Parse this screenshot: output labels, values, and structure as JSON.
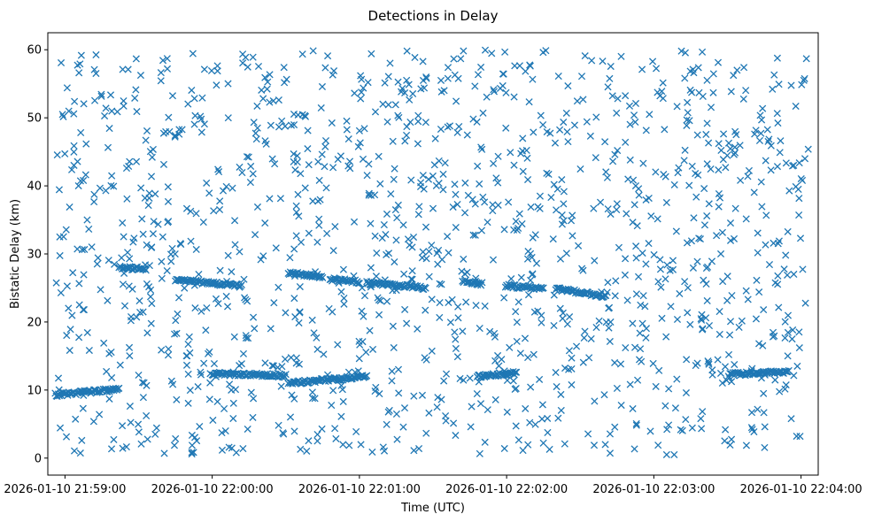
{
  "chart_data": {
    "type": "scatter",
    "title": "Detections in Delay",
    "xlabel": "Time (UTC)",
    "ylabel": "Bistatic Delay (km)",
    "marker": "x",
    "color": "#1f77b4",
    "grid": false,
    "legend": "none",
    "xlim": [
      "2026-01-10 21:58:53",
      "2026-01-10 22:04:07"
    ],
    "ylim": [
      -2.5,
      62.5
    ],
    "xticks": [
      "2026-01-10 21:59:00",
      "2026-01-10 22:00:00",
      "2026-01-10 22:01:00",
      "2026-01-10 22:02:00",
      "2026-01-10 22:03:00",
      "2026-01-10 22:04:00"
    ],
    "yticks": [
      0,
      10,
      20,
      30,
      40,
      50,
      60
    ],
    "note": "Dense random clutter points (approx. 0–60 km) over the full time span, plus several linear detection tracks near 25–27 km and 9–13 km.",
    "tracks": [
      {
        "t_start": "2026-01-10 21:59:22",
        "t_end": "2026-01-10 21:59:33",
        "delay_start": 28.0,
        "delay_end": 27.8
      },
      {
        "t_start": "2026-01-10 21:59:45",
        "t_end": "2026-01-10 22:00:12",
        "delay_start": 26.2,
        "delay_end": 25.3
      },
      {
        "t_start": "2026-01-10 22:00:31",
        "t_end": "2026-01-10 22:00:45",
        "delay_start": 27.2,
        "delay_end": 26.7
      },
      {
        "t_start": "2026-01-10 22:00:48",
        "t_end": "2026-01-10 22:01:00",
        "delay_start": 26.3,
        "delay_end": 25.9
      },
      {
        "t_start": "2026-01-10 22:01:03",
        "t_end": "2026-01-10 22:01:27",
        "delay_start": 25.8,
        "delay_end": 25.0
      },
      {
        "t_start": "2026-01-10 22:01:42",
        "t_end": "2026-01-10 22:01:50",
        "delay_start": 26.0,
        "delay_end": 25.6
      },
      {
        "t_start": "2026-01-10 22:02:00",
        "t_end": "2026-01-10 22:02:15",
        "delay_start": 25.3,
        "delay_end": 24.9
      },
      {
        "t_start": "2026-01-10 22:02:20",
        "t_end": "2026-01-10 22:02:40",
        "delay_start": 24.9,
        "delay_end": 23.8
      },
      {
        "t_start": "2026-01-10 21:58:56",
        "t_end": "2026-01-10 21:59:22",
        "delay_start": 9.3,
        "delay_end": 10.1
      },
      {
        "t_start": "2026-01-10 22:00:00",
        "t_end": "2026-01-10 22:00:30",
        "delay_start": 12.4,
        "delay_end": 12.1
      },
      {
        "t_start": "2026-01-10 22:00:31",
        "t_end": "2026-01-10 22:01:03",
        "delay_start": 11.0,
        "delay_end": 12.0
      },
      {
        "t_start": "2026-01-10 22:01:48",
        "t_end": "2026-01-10 22:02:04",
        "delay_start": 12.0,
        "delay_end": 12.5
      },
      {
        "t_start": "2026-01-10 22:03:31",
        "t_end": "2026-01-10 22:03:55",
        "delay_start": 12.3,
        "delay_end": 12.7
      }
    ]
  }
}
